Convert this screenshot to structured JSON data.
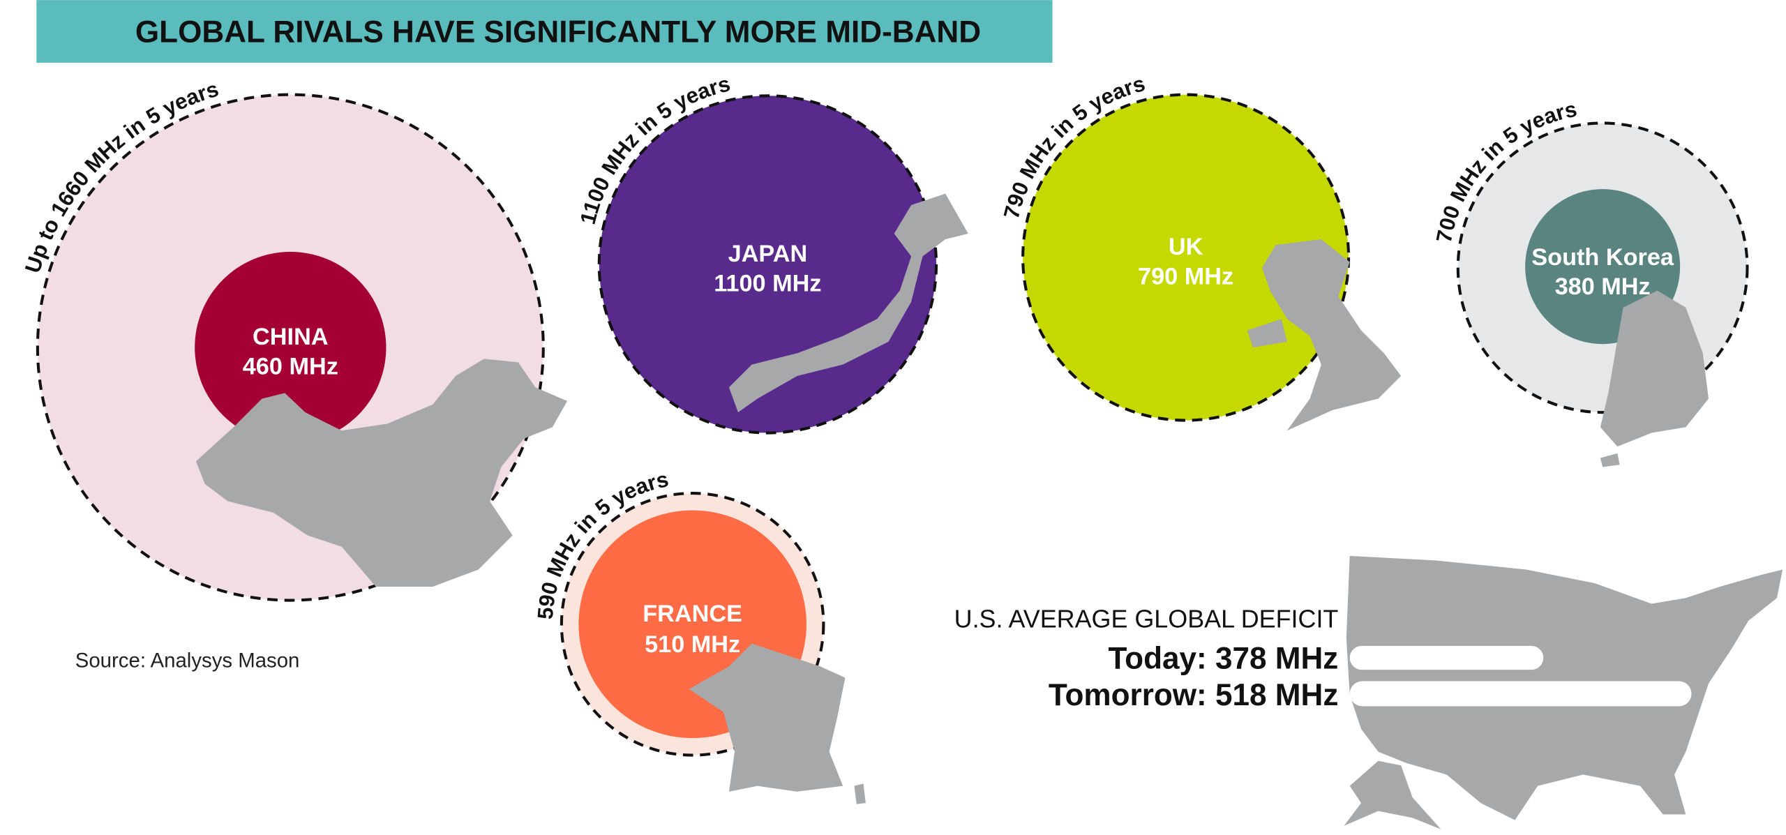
{
  "title": "GLOBAL RIVALS HAVE SIGNIFICANTLY MORE MID-BAND",
  "countries": [
    {
      "forecast": "Up to 1660 MHz in 5 years",
      "name": "CHINA",
      "current": "460 MHz"
    },
    {
      "forecast": "1100 MHz in 5 years",
      "name": "JAPAN",
      "current": "1100 MHz"
    },
    {
      "forecast": "790 MHz in 5 years",
      "name": "UK",
      "current": "790 MHz"
    },
    {
      "forecast": "700 MHz in 5 years",
      "name": "South Korea",
      "current": "380 MHz"
    },
    {
      "forecast": "590 MHz in 5 years",
      "name": "FRANCE",
      "current": "510 MHz"
    }
  ],
  "source": "Source: Analysys Mason",
  "us": {
    "heading": "U.S. AVERAGE GLOBAL DEFICIT",
    "today": "Today: 378 MHz",
    "tomorrow": "Tomorrow: 518 MHz"
  }
}
